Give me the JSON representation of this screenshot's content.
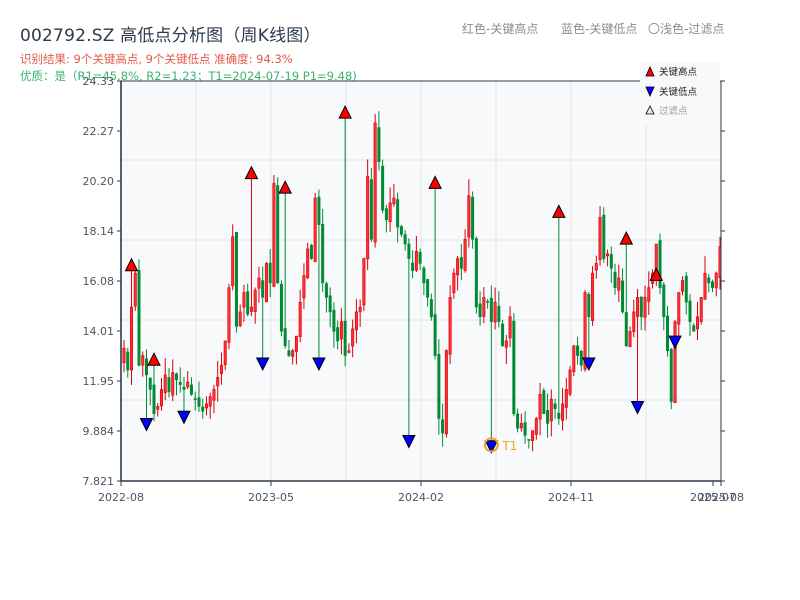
{
  "header": {
    "title": "002792.SZ 高低点分析图（周K线图）",
    "result": "识别结果: 9个关键高点, 9个关键低点   准确度: 94.3%",
    "quality": "优质：是（R1=45.8%, R2=1.23；T1=2024-07-19 P1=9.48)",
    "note_red": "红色-关键高点",
    "note_blue": "蓝色-关键低点",
    "note_light": "〇浅色-过滤点"
  },
  "legend": [
    {
      "label": "关键高点",
      "marker": "triangle-up",
      "color": "#ff0000"
    },
    {
      "label": "关键低点",
      "marker": "triangle-down",
      "color": "#0000ff"
    },
    {
      "label": "过滤点",
      "marker": "triangle-up-light",
      "color": "#ffcccc"
    }
  ],
  "colors": {
    "up": "#d7000f",
    "down": "#008a35",
    "high_marker": "#ff0000",
    "low_marker": "#0000ff",
    "t1_circle": "#f5a11c",
    "grid": "#e3e6ea",
    "plot_bg": "#f7f9fb",
    "axis": "#2c3a4a"
  },
  "chart_data": {
    "type": "candlestick",
    "title": "002792.SZ 高低点分析图（周K线图）",
    "xlabel": "",
    "ylabel": "",
    "ylim": [
      7.821,
      24.33
    ],
    "yticks": [
      "7.821",
      "9.884",
      "11.95",
      "14.01",
      "16.08",
      "18.14",
      "20.20",
      "22.27",
      "24.33"
    ],
    "xticks": [
      {
        "label": "2022-08",
        "pos": 0
      },
      {
        "label": "2023-05",
        "pos": 39
      },
      {
        "label": "2024-02",
        "pos": 78
      },
      {
        "label": "2024-11",
        "pos": 117
      },
      {
        "label": "2025-07",
        "pos": 154
      },
      {
        "label": "2025-08",
        "pos": 156
      }
    ],
    "grid": true,
    "legend_position": "upper right",
    "closes": [
      13.3,
      12.4,
      15.0,
      16.4,
      12.6,
      13.0,
      12.2,
      11.6,
      10.6,
      10.9,
      11.6,
      12.2,
      11.5,
      12.3,
      12.0,
      11.8,
      11.6,
      11.9,
      11.4,
      11.2,
      10.9,
      10.7,
      11.0,
      11.3,
      11.6,
      12.1,
      12.6,
      13.6,
      15.8,
      17.9,
      14.2,
      14.8,
      15.6,
      14.7,
      15.0,
      15.7,
      16.2,
      15.4,
      16.8,
      16.0,
      20.1,
      16.0,
      14.0,
      13.4,
      13.0,
      13.2,
      13.8,
      15.2,
      16.3,
      17.4,
      17.0,
      19.5,
      18.4,
      16.0,
      15.4,
      14.8,
      14.0,
      13.6,
      14.4,
      13.0,
      13.2,
      14.1,
      14.8,
      15.0,
      17.0,
      20.4,
      17.8,
      22.6,
      21.0,
      19.0,
      18.6,
      19.3,
      19.5,
      18.3,
      18.0,
      17.6,
      17.0,
      16.5,
      17.3,
      16.8,
      16.0,
      15.4,
      14.6,
      13.0,
      10.4,
      9.8,
      13.2,
      15.4,
      16.4,
      17.0,
      16.6,
      17.8,
      19.6,
      17.8,
      15.0,
      14.6,
      15.4,
      15.2,
      14.4,
      15.2,
      14.4,
      13.4,
      13.6,
      14.6,
      10.6,
      10.0,
      10.2,
      9.7,
      9.5,
      9.9,
      10.4,
      11.4,
      10.6,
      10.2,
      11.2,
      10.8,
      10.4,
      11.0,
      11.6,
      12.4,
      13.4,
      13.0,
      12.6,
      15.6,
      14.6,
      16.4,
      16.8,
      18.7,
      17.0,
      17.2,
      16.6,
      15.8,
      16.2,
      14.8,
      13.4,
      14.0,
      14.8,
      15.4,
      14.6,
      15.4,
      15.8,
      16.4,
      17.6,
      15.8,
      14.6,
      13.2,
      11.1,
      14.4,
      15.6,
      16.1,
      15.2,
      14.4,
      14.0,
      14.6,
      15.4,
      16.4,
      16.0,
      15.8,
      16.4,
      17.5
    ],
    "key_highs": [
      {
        "index": 2,
        "value": 16.5
      },
      {
        "index": 8,
        "value": 12.6
      },
      {
        "index": 34,
        "value": 20.3
      },
      {
        "index": 43,
        "value": 19.7
      },
      {
        "index": 59,
        "value": 22.8
      },
      {
        "index": 83,
        "value": 19.9
      },
      {
        "index": 116,
        "value": 18.7
      },
      {
        "index": 134,
        "value": 17.6
      },
      {
        "index": 142,
        "value": 16.1
      }
    ],
    "key_lows": [
      {
        "index": 6,
        "value": 10.4
      },
      {
        "index": 16,
        "value": 10.7
      },
      {
        "index": 37,
        "value": 12.9
      },
      {
        "index": 52,
        "value": 12.9
      },
      {
        "index": 76,
        "value": 9.7
      },
      {
        "index": 98,
        "value": 9.48
      },
      {
        "index": 124,
        "value": 12.9
      },
      {
        "index": 137,
        "value": 11.1
      },
      {
        "index": 147,
        "value": 13.8
      }
    ],
    "annotations": [
      {
        "label": "T1",
        "index": 98,
        "value": 9.48
      }
    ]
  }
}
